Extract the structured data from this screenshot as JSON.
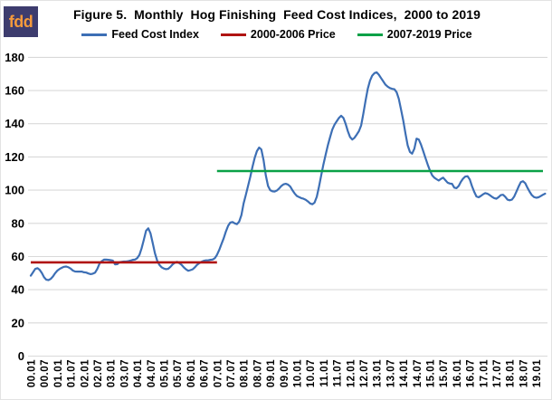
{
  "page": {
    "logo_text": "fdd",
    "logo_bg_color": "#3d3c6e",
    "logo_text_color": "#f59a3c"
  },
  "chart": {
    "title": "Figure 5.  Monthly  Hog Finishing  Feed Cost Indices,  2000 to 2019",
    "legend": [
      {
        "label": "Feed Cost Index",
        "color": "#3d6fb5"
      },
      {
        "label": "2000-2006 Price",
        "color": "#b01412"
      },
      {
        "label": "2007-2019 Price",
        "color": "#0aa147"
      }
    ]
  },
  "chart_data": {
    "type": "line",
    "title": "Figure 5. Monthly Hog Finishing Feed Cost Indices, 2000 to 2019",
    "x_start": "2000.01",
    "frequency": "monthly",
    "ylim": [
      0,
      180
    ],
    "y_ticks": [
      0,
      20,
      40,
      60,
      80,
      100,
      120,
      140,
      160,
      180
    ],
    "x_tick_labels": [
      "00.01",
      "00.07",
      "01.01",
      "01.07",
      "02.01",
      "02.07",
      "03.01",
      "03.07",
      "04.01",
      "04.07",
      "05.01",
      "05.07",
      "06.01",
      "06.07",
      "07.01",
      "07.07",
      "08.01",
      "08.07",
      "09.01",
      "09.07",
      "10.01",
      "10.07",
      "11.01",
      "11.07",
      "12.01",
      "12.07",
      "13.01",
      "13.07",
      "14.01",
      "14.07",
      "15.01",
      "15.07",
      "16.01",
      "16.07",
      "17.01",
      "17.07",
      "18.01",
      "18.07",
      "19.01"
    ],
    "grid": "horizontal-only",
    "legend_position": "top",
    "series": [
      {
        "name": "Feed Cost Index",
        "type": "line",
        "color": "#3d6fb5",
        "values": [
          48.5,
          50.5,
          52.5,
          53,
          52,
          50,
          47.5,
          46,
          45.8,
          46.5,
          48,
          50,
          51.5,
          52.5,
          53.2,
          53.8,
          54,
          53.5,
          52.7,
          51.5,
          51,
          50.9,
          50.9,
          50.9,
          50.5,
          50.3,
          49.8,
          49.4,
          49.7,
          50.3,
          52.5,
          55.7,
          57.2,
          58.1,
          58.2,
          58,
          57.8,
          57.5,
          55.3,
          55.4,
          56.6,
          56.8,
          57,
          57,
          57.2,
          57.5,
          58,
          58.2,
          59,
          61,
          65,
          70,
          75.5,
          77,
          74,
          68,
          62,
          57.5,
          55,
          53.5,
          52.8,
          52.4,
          52.6,
          53.8,
          55.3,
          56.3,
          56.8,
          56,
          55,
          53.5,
          52.3,
          51.4,
          51.8,
          52.3,
          53.5,
          55,
          56,
          56.8,
          57.4,
          57.7,
          57.7,
          58,
          58.2,
          59,
          61,
          64,
          67.5,
          71,
          75,
          78.5,
          80.5,
          80.8,
          80,
          79.5,
          81,
          85,
          92,
          97,
          102.5,
          108,
          114,
          119.5,
          123.5,
          125.7,
          124.5,
          118,
          109,
          102.5,
          100,
          99.3,
          99.2,
          99.8,
          101,
          102.5,
          103.5,
          103.8,
          103.4,
          102.2,
          100,
          98,
          96.5,
          95.8,
          95.2,
          94.8,
          94.2,
          93.2,
          92,
          91.5,
          92.5,
          96,
          102,
          109,
          115.5,
          121.5,
          127,
          132,
          136.5,
          139.5,
          141.5,
          143.5,
          144.8,
          143.5,
          140,
          135.5,
          132,
          130.5,
          131.5,
          133.5,
          135.5,
          139,
          146,
          154,
          161,
          166,
          169,
          170.5,
          171,
          169.5,
          167.5,
          165.5,
          163.5,
          162.3,
          161.5,
          161,
          160.8,
          159,
          155,
          148.5,
          142,
          134,
          127,
          123,
          122,
          125,
          131,
          130.5,
          127.5,
          123.5,
          119.5,
          115.5,
          112,
          109,
          107.5,
          106.6,
          105.8,
          106.8,
          107.5,
          106,
          104.5,
          104,
          103.8,
          101.5,
          101.2,
          102.5,
          105,
          107,
          108.2,
          108.4,
          106.5,
          102.5,
          99,
          96.2,
          95.7,
          96.5,
          97.5,
          98.2,
          97.8,
          97,
          96,
          95.2,
          94.8,
          95.8,
          97,
          97.2,
          96,
          94.3,
          93.9,
          94.3,
          96,
          99,
          102,
          104.8,
          105.4,
          104.2,
          101.5,
          99,
          97,
          95.8,
          95.4,
          95.7,
          96.4,
          97.2,
          97.9
        ]
      },
      {
        "name": "2000-2006 Price",
        "type": "hline",
        "color": "#b01412",
        "value": 56.5,
        "span": [
          "2000.01",
          "2007.01"
        ]
      },
      {
        "name": "2007-2019 Price",
        "type": "hline",
        "color": "#0aa147",
        "value": 111.5,
        "span": [
          "2007.01",
          "2019.04"
        ]
      }
    ]
  }
}
